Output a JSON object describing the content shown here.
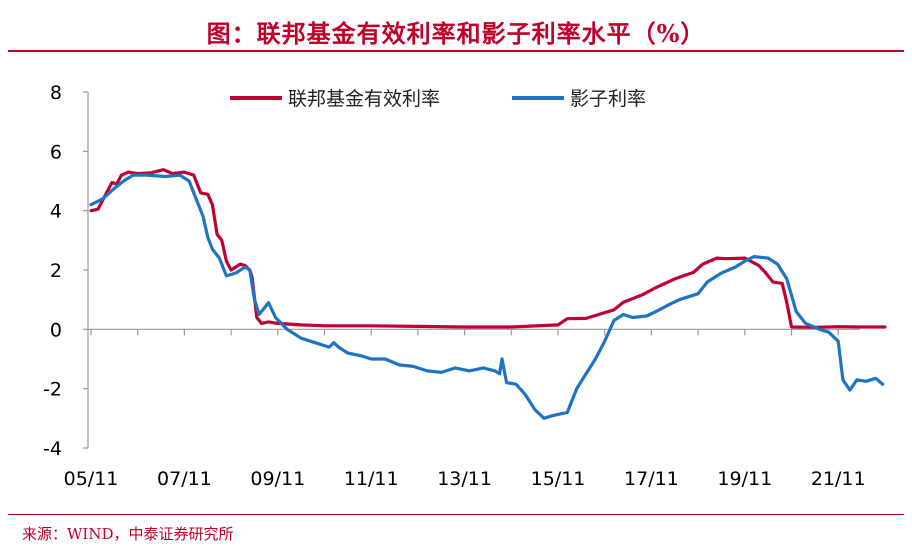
{
  "title": "图：联邦基金有效利率和影子利率水平（%）",
  "source": "来源：WIND，中泰证券研究所",
  "colors": {
    "accent": "#c0002a",
    "ffr": "#c00030",
    "shadow": "#1f73c4"
  },
  "chart_data": {
    "type": "line",
    "title": "图：联邦基金有效利率和影子利率水平（%）",
    "xlabel": "",
    "ylabel": "",
    "ylim": [
      -4,
      8
    ],
    "yticks": [
      -4,
      -2,
      0,
      2,
      4,
      6,
      8
    ],
    "xticks": [
      "05/11",
      "07/11",
      "09/11",
      "11/11",
      "13/11",
      "15/11",
      "17/11",
      "19/11",
      "21/11"
    ],
    "x_unit": "years since 2005-11",
    "legend_placement": "top-center",
    "grid": false,
    "series": [
      {
        "name": "联邦基金有效利率",
        "color": "#c00030",
        "points": [
          [
            0.0,
            4.0
          ],
          [
            0.15,
            4.05
          ],
          [
            0.3,
            4.5
          ],
          [
            0.45,
            4.95
          ],
          [
            0.55,
            4.9
          ],
          [
            0.65,
            5.2
          ],
          [
            0.8,
            5.3
          ],
          [
            1.0,
            5.25
          ],
          [
            1.3,
            5.28
          ],
          [
            1.55,
            5.38
          ],
          [
            1.75,
            5.25
          ],
          [
            2.0,
            5.3
          ],
          [
            2.2,
            5.2
          ],
          [
            2.35,
            4.6
          ],
          [
            2.5,
            4.55
          ],
          [
            2.6,
            4.2
          ],
          [
            2.7,
            3.2
          ],
          [
            2.8,
            3.0
          ],
          [
            2.9,
            2.3
          ],
          [
            3.0,
            2.0
          ],
          [
            3.2,
            2.2
          ],
          [
            3.3,
            2.15
          ],
          [
            3.4,
            2.0
          ],
          [
            3.45,
            1.75
          ],
          [
            3.55,
            0.4
          ],
          [
            3.65,
            0.2
          ],
          [
            3.8,
            0.25
          ],
          [
            4.0,
            0.2
          ],
          [
            4.5,
            0.15
          ],
          [
            5.0,
            0.12
          ],
          [
            6.0,
            0.12
          ],
          [
            7.0,
            0.1
          ],
          [
            8.0,
            0.08
          ],
          [
            9.0,
            0.08
          ],
          [
            10.0,
            0.15
          ],
          [
            10.2,
            0.36
          ],
          [
            10.6,
            0.37
          ],
          [
            11.2,
            0.66
          ],
          [
            11.4,
            0.91
          ],
          [
            11.8,
            1.16
          ],
          [
            12.1,
            1.41
          ],
          [
            12.5,
            1.7
          ],
          [
            12.9,
            1.92
          ],
          [
            13.1,
            2.2
          ],
          [
            13.4,
            2.4
          ],
          [
            13.6,
            2.38
          ],
          [
            14.0,
            2.4
          ],
          [
            14.3,
            2.15
          ],
          [
            14.45,
            1.9
          ],
          [
            14.6,
            1.6
          ],
          [
            14.8,
            1.55
          ],
          [
            14.9,
            0.9
          ],
          [
            15.0,
            0.08
          ],
          [
            15.5,
            0.07
          ],
          [
            16.0,
            0.09
          ],
          [
            16.5,
            0.08
          ],
          [
            17.0,
            0.08
          ]
        ]
      },
      {
        "name": "影子利率",
        "color": "#1f73c4",
        "points": [
          [
            0.0,
            4.2
          ],
          [
            0.25,
            4.4
          ],
          [
            0.5,
            4.75
          ],
          [
            0.7,
            5.0
          ],
          [
            0.9,
            5.2
          ],
          [
            1.2,
            5.2
          ],
          [
            1.6,
            5.15
          ],
          [
            1.9,
            5.2
          ],
          [
            2.1,
            5.0
          ],
          [
            2.25,
            4.4
          ],
          [
            2.4,
            3.8
          ],
          [
            2.5,
            3.1
          ],
          [
            2.6,
            2.7
          ],
          [
            2.75,
            2.4
          ],
          [
            2.9,
            1.8
          ],
          [
            3.1,
            1.9
          ],
          [
            3.3,
            2.1
          ],
          [
            3.4,
            2.0
          ],
          [
            3.5,
            1.0
          ],
          [
            3.6,
            0.5
          ],
          [
            3.7,
            0.7
          ],
          [
            3.8,
            0.9
          ],
          [
            3.95,
            0.4
          ],
          [
            4.2,
            0.0
          ],
          [
            4.5,
            -0.3
          ],
          [
            4.9,
            -0.5
          ],
          [
            5.1,
            -0.6
          ],
          [
            5.2,
            -0.45
          ],
          [
            5.3,
            -0.6
          ],
          [
            5.5,
            -0.8
          ],
          [
            5.8,
            -0.9
          ],
          [
            6.0,
            -1.0
          ],
          [
            6.3,
            -1.0
          ],
          [
            6.6,
            -1.2
          ],
          [
            6.9,
            -1.25
          ],
          [
            7.2,
            -1.4
          ],
          [
            7.5,
            -1.45
          ],
          [
            7.8,
            -1.3
          ],
          [
            8.1,
            -1.4
          ],
          [
            8.4,
            -1.3
          ],
          [
            8.65,
            -1.4
          ],
          [
            8.75,
            -1.5
          ],
          [
            8.8,
            -1.0
          ],
          [
            8.9,
            -1.8
          ],
          [
            9.1,
            -1.85
          ],
          [
            9.3,
            -2.2
          ],
          [
            9.5,
            -2.7
          ],
          [
            9.7,
            -3.0
          ],
          [
            9.9,
            -2.9
          ],
          [
            10.2,
            -2.8
          ],
          [
            10.4,
            -2.0
          ],
          [
            10.6,
            -1.5
          ],
          [
            10.8,
            -1.0
          ],
          [
            11.0,
            -0.4
          ],
          [
            11.2,
            0.3
          ],
          [
            11.4,
            0.5
          ],
          [
            11.6,
            0.4
          ],
          [
            11.9,
            0.45
          ],
          [
            12.1,
            0.6
          ],
          [
            12.4,
            0.85
          ],
          [
            12.6,
            1.0
          ],
          [
            13.0,
            1.2
          ],
          [
            13.2,
            1.6
          ],
          [
            13.5,
            1.9
          ],
          [
            13.8,
            2.1
          ],
          [
            14.0,
            2.3
          ],
          [
            14.2,
            2.45
          ],
          [
            14.5,
            2.4
          ],
          [
            14.7,
            2.2
          ],
          [
            14.9,
            1.7
          ],
          [
            15.1,
            0.6
          ],
          [
            15.3,
            0.2
          ],
          [
            15.6,
            0.0
          ],
          [
            15.8,
            -0.1
          ],
          [
            16.0,
            -0.4
          ],
          [
            16.1,
            -1.7
          ],
          [
            16.25,
            -2.05
          ],
          [
            16.4,
            -1.7
          ],
          [
            16.6,
            -1.75
          ],
          [
            16.8,
            -1.65
          ],
          [
            16.95,
            -1.85
          ]
        ]
      }
    ]
  }
}
